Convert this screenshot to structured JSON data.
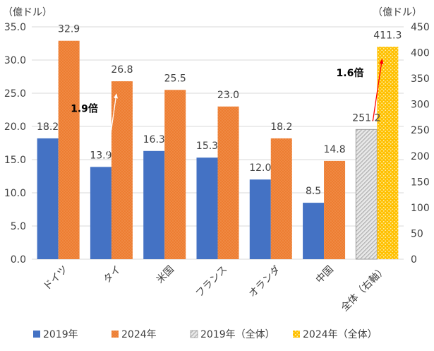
{
  "chart_data": {
    "type": "bar",
    "left_unit": "（億ドル）",
    "right_unit": "（億ドル）",
    "categories": [
      "ドイツ",
      "タイ",
      "米国",
      "フランス",
      "オランダ",
      "中国",
      "全体（右軸）"
    ],
    "series": [
      {
        "name": "2019年",
        "values": [
          18.2,
          13.9,
          16.3,
          15.3,
          12.0,
          8.5,
          null
        ],
        "labels": [
          "18.2",
          "13.9",
          "16.3",
          "15.3",
          "12.0",
          "8.5",
          null
        ],
        "color": "#4472c4"
      },
      {
        "name": "2024年",
        "values": [
          32.9,
          26.8,
          25.5,
          23.0,
          18.2,
          14.8,
          null
        ],
        "labels": [
          "32.9",
          "26.8",
          "25.5",
          "23.0",
          "18.2",
          "14.8",
          null
        ],
        "color": "#ed7d31"
      },
      {
        "name": "2019年（全体）",
        "axis": "right",
        "values": [
          null,
          null,
          null,
          null,
          null,
          null,
          251.2
        ],
        "labels": [
          null,
          null,
          null,
          null,
          null,
          null,
          "251.2"
        ],
        "color": "#a6a6a6"
      },
      {
        "name": "2024年（全体）",
        "axis": "right",
        "values": [
          null,
          null,
          null,
          null,
          null,
          null,
          411.3
        ],
        "labels": [
          null,
          null,
          null,
          null,
          null,
          null,
          "411.3"
        ],
        "color": "#ffc000"
      }
    ],
    "left_axis": {
      "min": 0,
      "max": 35,
      "ticks": [
        "0.0",
        "5.0",
        "10.0",
        "15.0",
        "20.0",
        "25.0",
        "30.0",
        "35.0"
      ]
    },
    "right_axis": {
      "min": 0,
      "max": 450,
      "ticks": [
        "0",
        "50",
        "100",
        "150",
        "200",
        "250",
        "300",
        "350",
        "400",
        "450"
      ]
    },
    "annotations": [
      {
        "text": "1.9倍",
        "category": "タイ",
        "from_value": 13.9,
        "to_value": 26.8,
        "axis": "left",
        "arrow_color": "#ffffff"
      },
      {
        "text": "1.6倍",
        "category": "全体（右軸）",
        "from_value": 251.2,
        "to_value": 411.3,
        "axis": "right",
        "arrow_color": "#ff0000"
      }
    ],
    "legend": {
      "placement": "bottom"
    }
  }
}
